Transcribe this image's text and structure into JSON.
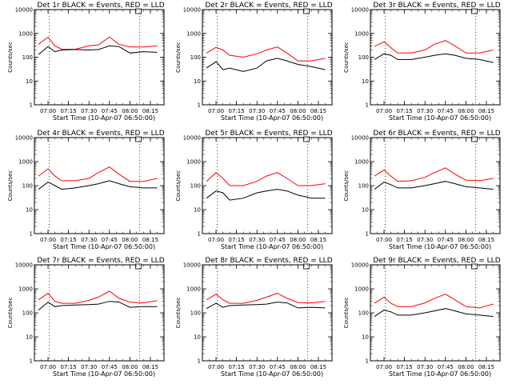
{
  "panels": [
    {
      "title": "Det 1r BLACK = Events, RED = LLD",
      "red": [
        350,
        700,
        300,
        215,
        215,
        300,
        330,
        700,
        350,
        270,
        270,
        300
      ],
      "black": [
        130,
        280,
        170,
        200,
        210,
        200,
        210,
        300,
        280,
        150,
        170,
        160
      ]
    },
    {
      "title": "Det 2r BLACK = Events, RED = LLD",
      "red": [
        150,
        260,
        200,
        120,
        100,
        140,
        200,
        270,
        150,
        70,
        70,
        90
      ],
      "black": [
        35,
        65,
        30,
        35,
        25,
        35,
        70,
        90,
        70,
        50,
        40,
        30
      ]
    },
    {
      "title": "Det 3r BLACK = Events, RED = LLD",
      "red": [
        280,
        450,
        250,
        150,
        150,
        200,
        350,
        500,
        300,
        150,
        150,
        200
      ],
      "black": [
        80,
        140,
        120,
        80,
        80,
        100,
        120,
        140,
        120,
        90,
        80,
        60
      ]
    },
    {
      "title": "Det 4r BLACK = Events, RED = LLD",
      "red": [
        250,
        500,
        250,
        160,
        160,
        200,
        350,
        600,
        300,
        150,
        150,
        200
      ],
      "black": [
        70,
        140,
        100,
        70,
        80,
        100,
        120,
        160,
        120,
        90,
        80,
        80
      ]
    },
    {
      "title": "Det 5r BLACK = Events, RED = LLD",
      "red": [
        150,
        350,
        200,
        100,
        100,
        150,
        250,
        350,
        200,
        100,
        100,
        120
      ],
      "black": [
        30,
        60,
        50,
        25,
        30,
        50,
        60,
        70,
        60,
        40,
        30,
        30
      ]
    },
    {
      "title": "Det 6r BLACK = Events, RED = LLD",
      "red": [
        250,
        450,
        250,
        150,
        160,
        220,
        350,
        550,
        300,
        170,
        160,
        200
      ],
      "black": [
        70,
        140,
        110,
        80,
        80,
        100,
        120,
        150,
        120,
        90,
        80,
        70
      ]
    },
    {
      "title": "Det 7r BLACK = Events, RED = LLD",
      "red": [
        350,
        650,
        300,
        250,
        250,
        330,
        450,
        800,
        400,
        280,
        260,
        320
      ],
      "black": [
        130,
        280,
        180,
        200,
        210,
        220,
        230,
        300,
        280,
        170,
        180,
        180
      ]
    },
    {
      "title": "Det 8r BLACK = Events, RED = LLD",
      "red": [
        350,
        600,
        350,
        250,
        250,
        330,
        450,
        650,
        400,
        270,
        260,
        300
      ],
      "black": [
        150,
        250,
        170,
        200,
        210,
        220,
        230,
        280,
        260,
        160,
        170,
        160
      ]
    },
    {
      "title": "Det 9r BLACK = Events, RED = LLD",
      "red": [
        250,
        450,
        250,
        180,
        180,
        260,
        400,
        600,
        350,
        180,
        160,
        230
      ],
      "black": [
        70,
        130,
        110,
        80,
        80,
        100,
        120,
        150,
        120,
        90,
        80,
        70
      ]
    }
  ],
  "ylabel": "Counts/sec",
  "xlabel": "Start Time (10-Apr-07 06:50:00)",
  "xticks": [
    "07:00",
    "07:15",
    "07:30",
    "07:45",
    "08:00",
    "08:15"
  ],
  "yticks": [
    "1",
    "10",
    "100",
    "1000",
    "10000"
  ],
  "colors": {
    "events": "#000000",
    "lld": "#ff0000"
  },
  "chart_data": {
    "type": "line",
    "scale": "log-y",
    "ylim": [
      1,
      10000
    ],
    "x": [
      "06:53",
      "07:00",
      "07:05",
      "07:10",
      "07:20",
      "07:30",
      "07:37",
      "07:45",
      "07:52",
      "08:00",
      "08:10",
      "08:20"
    ],
    "series": [
      {
        "name": "BLACK = Events"
      },
      {
        "name": "RED = LLD"
      }
    ]
  }
}
